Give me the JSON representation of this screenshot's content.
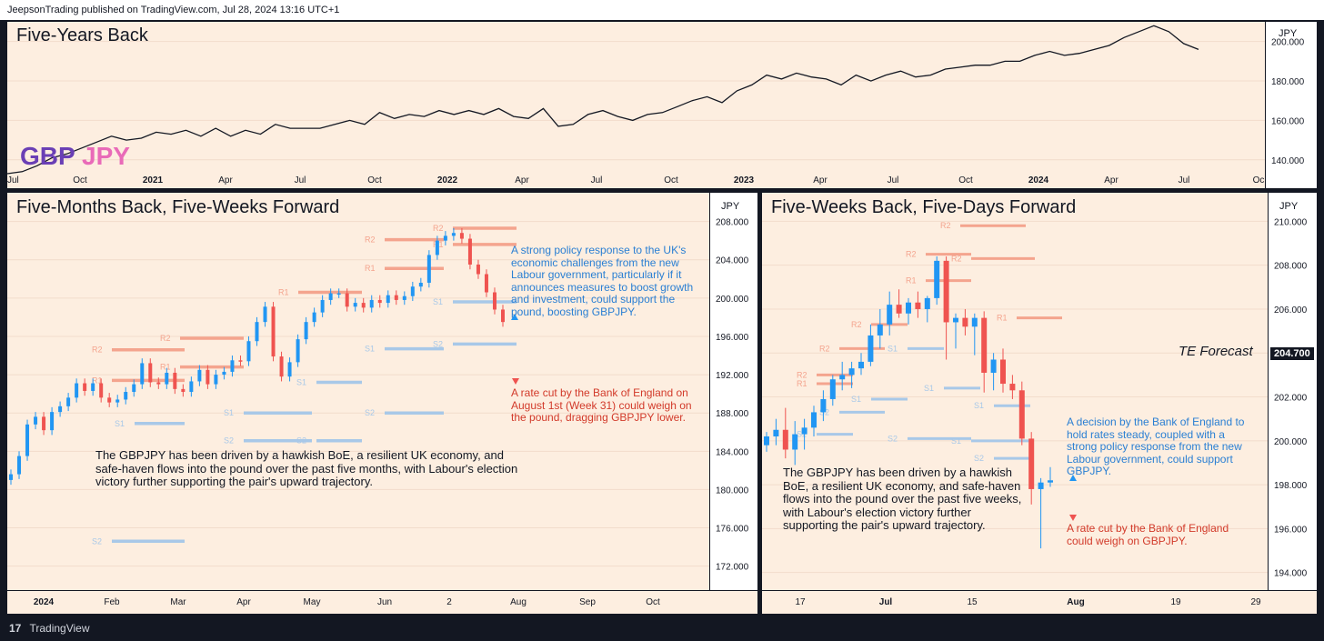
{
  "publication": "JeepsonTrading published on TradingView.com, Jul 28, 2024 13:16 UTC+1",
  "footer": {
    "brand": "TradingView",
    "logo": "17"
  },
  "brand_symbol": {
    "base": "GBP",
    "quote": "JPY"
  },
  "colors": {
    "background": "#fdeee0",
    "line": "#131722",
    "up": "#2196f3",
    "down": "#ef5350",
    "resistance": "#f4a48e",
    "support": "#a8c8e8",
    "blue_note": "#2a7fd3",
    "red_note": "#d23a2a"
  },
  "chart_data": [
    {
      "type": "line",
      "title": "Five-Years Back",
      "currency": "JPY",
      "x_ticks": [
        "Jul",
        "Oct",
        "2021",
        "Apr",
        "Jul",
        "Oct",
        "2022",
        "Apr",
        "Jul",
        "Oct",
        "2023",
        "Apr",
        "Jul",
        "Oct",
        "2024",
        "Apr",
        "Jul",
        "Oc"
      ],
      "y_ticks": [
        "140.000",
        "160.000",
        "180.000",
        "200.000"
      ],
      "ylim": [
        127,
        210
      ],
      "series": [
        {
          "name": "GBPJPY",
          "values": [
            133,
            134,
            137,
            141,
            143,
            146,
            149,
            152,
            150,
            151,
            154,
            153,
            155,
            152,
            156,
            152,
            155,
            153,
            158,
            156,
            156,
            156,
            158,
            160,
            158,
            164,
            161,
            163,
            162,
            165,
            163,
            165,
            163,
            166,
            162,
            161,
            166,
            157,
            158,
            163,
            165,
            162,
            160,
            163,
            164,
            167,
            170,
            172,
            169,
            175,
            178,
            183,
            181,
            184,
            182,
            181,
            178,
            183,
            180,
            183,
            185,
            182,
            183,
            186,
            187,
            188,
            188,
            190,
            190,
            193,
            195,
            193,
            194,
            196,
            198,
            202,
            205,
            208,
            205,
            199,
            196
          ]
        }
      ]
    },
    {
      "type": "candlestick",
      "title": "Five-Months Back, Five-Weeks Forward",
      "currency": "JPY",
      "x_ticks": [
        "2024",
        "Feb",
        "Mar",
        "Apr",
        "May",
        "Jun",
        "2",
        "Aug",
        "Sep",
        "Oct"
      ],
      "y_ticks": [
        "172.000",
        "176.000",
        "180.000",
        "184.000",
        "188.000",
        "192.000",
        "196.000",
        "200.000",
        "204.000",
        "208.000"
      ],
      "ylim": [
        169.5,
        211
      ],
      "close_path": [
        181.6,
        183.5,
        186.8,
        187.6,
        186.2,
        188.1,
        188.7,
        189.6,
        191.1,
        190.3,
        191.1,
        189.6,
        189.1,
        189.4,
        190.2,
        191.0,
        193.2,
        191.2,
        191.0,
        192.2,
        190.5,
        190.2,
        191.3,
        192.5,
        191.0,
        192.0,
        192.3,
        193.5,
        193.4,
        195.5,
        197.5,
        199.1,
        193.9,
        191.8,
        193.3,
        195.7,
        197.5,
        198.5,
        199.8,
        200.5,
        200.5,
        199.1,
        199.5,
        199.0,
        199.8,
        199.5,
        200.3,
        199.8,
        200.2,
        201.2,
        201.6,
        204.5,
        206.0,
        206.5,
        206.8,
        206.2,
        203.5,
        202.5,
        200.6,
        198.8,
        197.5
      ],
      "levels": [
        {
          "label": "R2",
          "value": 194.6,
          "kind": "resistance"
        },
        {
          "label": "R1",
          "value": 191.4,
          "kind": "resistance"
        },
        {
          "label": "S1",
          "value": 186.9,
          "kind": "support"
        },
        {
          "label": "S2",
          "value": 174.6,
          "kind": "support"
        },
        {
          "label": "R2",
          "value": 195.8,
          "kind": "resistance"
        },
        {
          "label": "R1",
          "value": 192.8,
          "kind": "resistance"
        },
        {
          "label": "S1",
          "value": 188.0,
          "kind": "support"
        },
        {
          "label": "S2",
          "value": 185.1,
          "kind": "support"
        },
        {
          "label": "R1",
          "value": 200.6,
          "kind": "resistance"
        },
        {
          "label": "S1",
          "value": 191.2,
          "kind": "support"
        },
        {
          "label": "S2",
          "value": 185.1,
          "kind": "support"
        },
        {
          "label": "R2",
          "value": 206.1,
          "kind": "resistance"
        },
        {
          "label": "R1",
          "value": 203.1,
          "kind": "resistance"
        },
        {
          "label": "S1",
          "value": 194.7,
          "kind": "support"
        },
        {
          "label": "S2",
          "value": 188.0,
          "kind": "support"
        },
        {
          "label": "R2",
          "value": 207.3,
          "kind": "resistance"
        },
        {
          "label": "R1",
          "value": 205.6,
          "kind": "resistance"
        },
        {
          "label": "S1",
          "value": 199.6,
          "kind": "support"
        },
        {
          "label": "S2",
          "value": 195.2,
          "kind": "support"
        }
      ],
      "annotations": {
        "bullish": "A strong policy response to the UK's economic challenges from the new Labour government, particularly if it announces measures to boost growth and investment, could support the pound, boosting GBPJPY.",
        "bearish": "A rate cut by the Bank of England on August 1st (Week 31) could weigh on the pound, dragging GBPJPY lower.",
        "summary": "The GBPJPY has been driven by a hawkish BoE, a resilient UK economy, and safe-haven flows into the pound over the past five months, with Labour's election victory further supporting the pair's upward trajectory."
      }
    },
    {
      "type": "candlestick",
      "title": "Five-Weeks Back, Five-Days Forward",
      "currency": "JPY",
      "x_ticks": [
        "17",
        "Jul",
        "15",
        "Aug",
        "19",
        "29"
      ],
      "y_ticks": [
        "194.000",
        "196.000",
        "198.000",
        "200.000",
        "202.000",
        "204.000",
        "206.000",
        "208.000",
        "210.000"
      ],
      "ylim": [
        193.2,
        211.3
      ],
      "price_label": "204.700",
      "forecast_label": "TE Forecast",
      "candles": [
        [
          199.8,
          200.4,
          199.5,
          200.2
        ],
        [
          200.2,
          201.0,
          199.8,
          200.5
        ],
        [
          200.5,
          201.5,
          199.2,
          199.6
        ],
        [
          199.6,
          200.9,
          198.9,
          200.3
        ],
        [
          200.3,
          201.0,
          199.6,
          200.6
        ],
        [
          200.6,
          201.6,
          200.2,
          201.3
        ],
        [
          201.3,
          202.3,
          200.9,
          201.9
        ],
        [
          201.9,
          203.0,
          201.6,
          202.8
        ],
        [
          202.8,
          203.6,
          202.3,
          203.0
        ],
        [
          203.0,
          203.6,
          202.4,
          203.3
        ],
        [
          203.3,
          204.0,
          203.0,
          203.6
        ],
        [
          203.6,
          205.3,
          203.4,
          204.8
        ],
        [
          204.8,
          206.0,
          204.2,
          205.3
        ],
        [
          205.3,
          206.8,
          204.8,
          206.2
        ],
        [
          206.2,
          206.9,
          205.6,
          205.8
        ],
        [
          205.8,
          206.5,
          205.3,
          206.3
        ],
        [
          206.3,
          206.8,
          205.6,
          206.0
        ],
        [
          206.0,
          206.6,
          205.4,
          206.5
        ],
        [
          206.5,
          208.4,
          206.2,
          208.2
        ],
        [
          208.2,
          208.4,
          203.7,
          205.4
        ],
        [
          205.4,
          205.8,
          204.2,
          205.6
        ],
        [
          205.6,
          206.0,
          204.8,
          205.2
        ],
        [
          205.2,
          205.8,
          203.9,
          205.6
        ],
        [
          205.6,
          205.9,
          202.2,
          203.1
        ],
        [
          203.1,
          204.0,
          202.3,
          203.7
        ],
        [
          203.7,
          204.2,
          202.2,
          202.6
        ],
        [
          202.6,
          203.0,
          201.9,
          202.3
        ],
        [
          202.3,
          202.7,
          199.8,
          200.1
        ],
        [
          200.1,
          200.4,
          197.1,
          197.8
        ],
        [
          197.8,
          198.3,
          195.1,
          198.1
        ],
        [
          198.1,
          198.8,
          197.9,
          198.2
        ]
      ],
      "levels": [
        {
          "label": "R2",
          "value": 209.8,
          "kind": "resistance"
        },
        {
          "label": "R2",
          "value": 208.5,
          "kind": "resistance"
        },
        {
          "label": "R2",
          "value": 208.3,
          "kind": "resistance"
        },
        {
          "label": "R1",
          "value": 207.3,
          "kind": "resistance"
        },
        {
          "label": "R1",
          "value": 205.6,
          "kind": "resistance"
        },
        {
          "label": "R2",
          "value": 205.3,
          "kind": "resistance"
        },
        {
          "label": "R2",
          "value": 204.2,
          "kind": "resistance"
        },
        {
          "label": "R2",
          "value": 203.0,
          "kind": "resistance"
        },
        {
          "label": "R1",
          "value": 202.6,
          "kind": "resistance"
        },
        {
          "label": "S1",
          "value": 204.2,
          "kind": "support"
        },
        {
          "label": "S1",
          "value": 202.4,
          "kind": "support"
        },
        {
          "label": "S1",
          "value": 201.9,
          "kind": "support"
        },
        {
          "label": "S1",
          "value": 201.6,
          "kind": "support"
        },
        {
          "label": "S2",
          "value": 201.3,
          "kind": "support"
        },
        {
          "label": "S2",
          "value": 200.3,
          "kind": "support"
        },
        {
          "label": "S2",
          "value": 200.1,
          "kind": "support"
        },
        {
          "label": "S1",
          "value": 200.0,
          "kind": "support"
        },
        {
          "label": "S2",
          "value": 199.2,
          "kind": "support"
        }
      ],
      "annotations": {
        "bullish": "A decision by the Bank of England to hold rates steady, coupled with a strong policy response from the new Labour government, could support GBPJPY.",
        "bearish": "A rate cut by the Bank of England could weigh on GBPJPY.",
        "summary": "The GBPJPY has been driven by a hawkish BoE, a resilient UK economy, and safe-haven flows into the pound over the past five weeks, with Labour's election victory further supporting the pair's upward trajectory."
      }
    }
  ]
}
